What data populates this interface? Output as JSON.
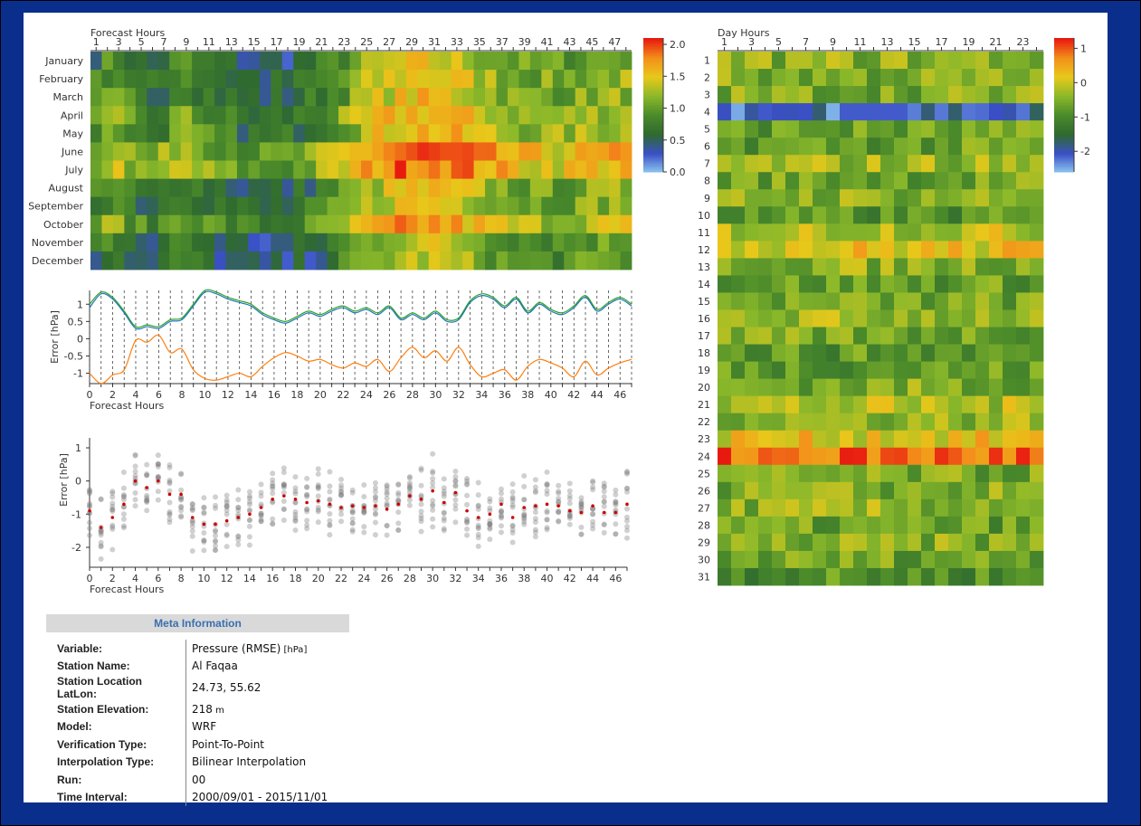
{
  "colors": {
    "background": "#0a2e8c",
    "panel": "#ffffff",
    "series_green": "#2ca02c",
    "series_blue": "#1f77b4",
    "series_orange": "#ff7f0e",
    "mean_marker": "#cc0000",
    "scatter": "#777777"
  },
  "colorscale": [
    "#8ec8f0",
    "#3a4fc6",
    "#2f6a2f",
    "#4a8a2a",
    "#8ab82a",
    "#e8c81a",
    "#f3901a",
    "#e81a10"
  ],
  "chart_data": [
    {
      "type": "heatmap",
      "title": "",
      "xlabel": "Forecast Hours",
      "x_ticks": [
        "1",
        "3",
        "5",
        "7",
        "9",
        "11",
        "13",
        "15",
        "17",
        "19",
        "21",
        "23",
        "25",
        "27",
        "29",
        "31",
        "33",
        "35",
        "37",
        "39",
        "41",
        "43",
        "45",
        "47"
      ],
      "y_categories": [
        "January",
        "February",
        "March",
        "April",
        "May",
        "June",
        "July",
        "August",
        "September",
        "October",
        "November",
        "December"
      ],
      "colorbar": {
        "min": 0.0,
        "max": 2.1,
        "ticks": [
          "0.0",
          "0.5",
          "1.0",
          "1.5",
          "2.0"
        ]
      },
      "values": []
    },
    {
      "type": "line",
      "xlabel": "Forecast Hours",
      "ylabel": "Error [hPa]",
      "x_ticks": [
        "0",
        "2",
        "4",
        "6",
        "8",
        "10",
        "12",
        "14",
        "16",
        "18",
        "20",
        "22",
        "24",
        "26",
        "28",
        "30",
        "32",
        "34",
        "36",
        "38",
        "40",
        "42",
        "44",
        "46"
      ],
      "y_ticks": [
        "1",
        "0.5",
        "0",
        "-0.5",
        "-1"
      ],
      "ylim": [
        -1.3,
        1.4
      ],
      "x": [
        0,
        1,
        2,
        3,
        4,
        5,
        6,
        7,
        8,
        9,
        10,
        11,
        12,
        13,
        14,
        15,
        16,
        17,
        18,
        19,
        20,
        21,
        22,
        23,
        24,
        25,
        26,
        27,
        28,
        29,
        30,
        31,
        32,
        33,
        34,
        35,
        36,
        37,
        38,
        39,
        40,
        41,
        42,
        43,
        44,
        45,
        46,
        47
      ],
      "series": [
        {
          "color": "green",
          "values": [
            1.0,
            1.35,
            1.2,
            0.8,
            0.35,
            0.4,
            0.35,
            0.55,
            0.6,
            1.0,
            1.4,
            1.35,
            1.2,
            1.1,
            1.0,
            0.75,
            0.6,
            0.5,
            0.65,
            0.8,
            0.7,
            0.85,
            0.95,
            0.8,
            0.9,
            0.75,
            0.95,
            0.6,
            0.75,
            0.6,
            0.8,
            0.55,
            0.6,
            1.1,
            1.3,
            1.2,
            0.95,
            1.2,
            0.8,
            1.05,
            0.85,
            0.75,
            0.95,
            1.25,
            0.85,
            1.05,
            1.2,
            1.0
          ]
        },
        {
          "color": "blue",
          "values": [
            0.9,
            1.3,
            1.15,
            0.75,
            0.3,
            0.35,
            0.3,
            0.5,
            0.55,
            0.95,
            1.35,
            1.3,
            1.15,
            1.05,
            0.95,
            0.7,
            0.55,
            0.45,
            0.6,
            0.75,
            0.65,
            0.8,
            0.9,
            0.75,
            0.85,
            0.7,
            0.9,
            0.55,
            0.7,
            0.55,
            0.75,
            0.5,
            0.55,
            1.05,
            1.25,
            1.15,
            0.9,
            1.15,
            0.75,
            1.0,
            0.8,
            0.7,
            0.9,
            1.2,
            0.8,
            1.0,
            1.15,
            0.95
          ]
        },
        {
          "color": "orange",
          "values": [
            -1.0,
            -1.3,
            -1.05,
            -0.9,
            -0.05,
            -0.1,
            0.1,
            -0.4,
            -0.3,
            -0.9,
            -1.15,
            -1.2,
            -1.1,
            -1.0,
            -1.1,
            -0.8,
            -0.55,
            -0.4,
            -0.5,
            -0.65,
            -0.6,
            -0.75,
            -0.85,
            -0.7,
            -0.8,
            -0.6,
            -0.95,
            -0.55,
            -0.25,
            -0.55,
            -0.35,
            -0.65,
            -0.25,
            -0.75,
            -1.1,
            -1.0,
            -0.9,
            -1.2,
            -0.8,
            -0.6,
            -0.7,
            -0.85,
            -1.1,
            -0.65,
            -1.05,
            -0.85,
            -0.7,
            -0.6
          ]
        }
      ]
    },
    {
      "type": "scatter",
      "xlabel": "Forecast Hours",
      "ylabel": "Error [hPa]",
      "x_ticks": [
        "0",
        "2",
        "4",
        "6",
        "8",
        "10",
        "12",
        "14",
        "16",
        "18",
        "20",
        "22",
        "24",
        "26",
        "28",
        "30",
        "32",
        "34",
        "36",
        "38",
        "40",
        "42",
        "44",
        "46"
      ],
      "y_ticks": [
        "1",
        "0",
        "-1",
        "-2"
      ],
      "ylim": [
        -2.6,
        1.3
      ],
      "means": [
        -0.9,
        -1.4,
        -1.1,
        -0.7,
        0.0,
        -0.2,
        0.0,
        -0.4,
        -0.4,
        -1.1,
        -1.3,
        -1.3,
        -1.2,
        -1.1,
        -1.0,
        -0.8,
        -0.55,
        -0.45,
        -0.55,
        -0.65,
        -0.6,
        -0.7,
        -0.8,
        -0.75,
        -0.8,
        -0.75,
        -0.85,
        -0.7,
        -0.45,
        -0.55,
        -0.3,
        -0.65,
        -0.35,
        -0.9,
        -1.1,
        -1.0,
        -0.7,
        -1.1,
        -0.8,
        -0.75,
        -0.7,
        -0.75,
        -0.9,
        -0.95,
        -0.75,
        -0.95,
        -0.95,
        -0.7
      ]
    },
    {
      "type": "heatmap",
      "title": "",
      "xlabel": "Day Hours",
      "x_ticks": [
        "1",
        "3",
        "5",
        "7",
        "9",
        "11",
        "13",
        "15",
        "17",
        "19",
        "21",
        "23"
      ],
      "y_categories": [
        "1",
        "2",
        "3",
        "4",
        "5",
        "6",
        "7",
        "8",
        "9",
        "10",
        "11",
        "12",
        "13",
        "14",
        "15",
        "16",
        "17",
        "18",
        "19",
        "20",
        "21",
        "22",
        "23",
        "24",
        "25",
        "26",
        "27",
        "28",
        "29",
        "30",
        "31"
      ],
      "colorbar": {
        "min": -2.6,
        "max": 1.3,
        "ticks": [
          "1",
          "0",
          "-1",
          "-2"
        ]
      },
      "values": []
    }
  ],
  "meta": {
    "header": "Meta Information",
    "rows": [
      {
        "label": "Variable:",
        "value": "Pressure (RMSE)",
        "unit": "[hPa]"
      },
      {
        "label": "Station Name:",
        "value": "Al Faqaa",
        "unit": ""
      },
      {
        "label": "Station Location LatLon:",
        "value": "24.73, 55.62",
        "unit": ""
      },
      {
        "label": "Station Elevation:",
        "value": "218",
        "unit": "m"
      },
      {
        "label": "Model:",
        "value": "WRF",
        "unit": ""
      },
      {
        "label": "Verification Type:",
        "value": "Point-To-Point",
        "unit": ""
      },
      {
        "label": "Interpolation Type:",
        "value": "Bilinear Interpolation",
        "unit": ""
      },
      {
        "label": "Run:",
        "value": "00",
        "unit": ""
      },
      {
        "label": "Time Interval:",
        "value": "2000/09/01 - 2015/11/01",
        "unit": ""
      }
    ]
  }
}
